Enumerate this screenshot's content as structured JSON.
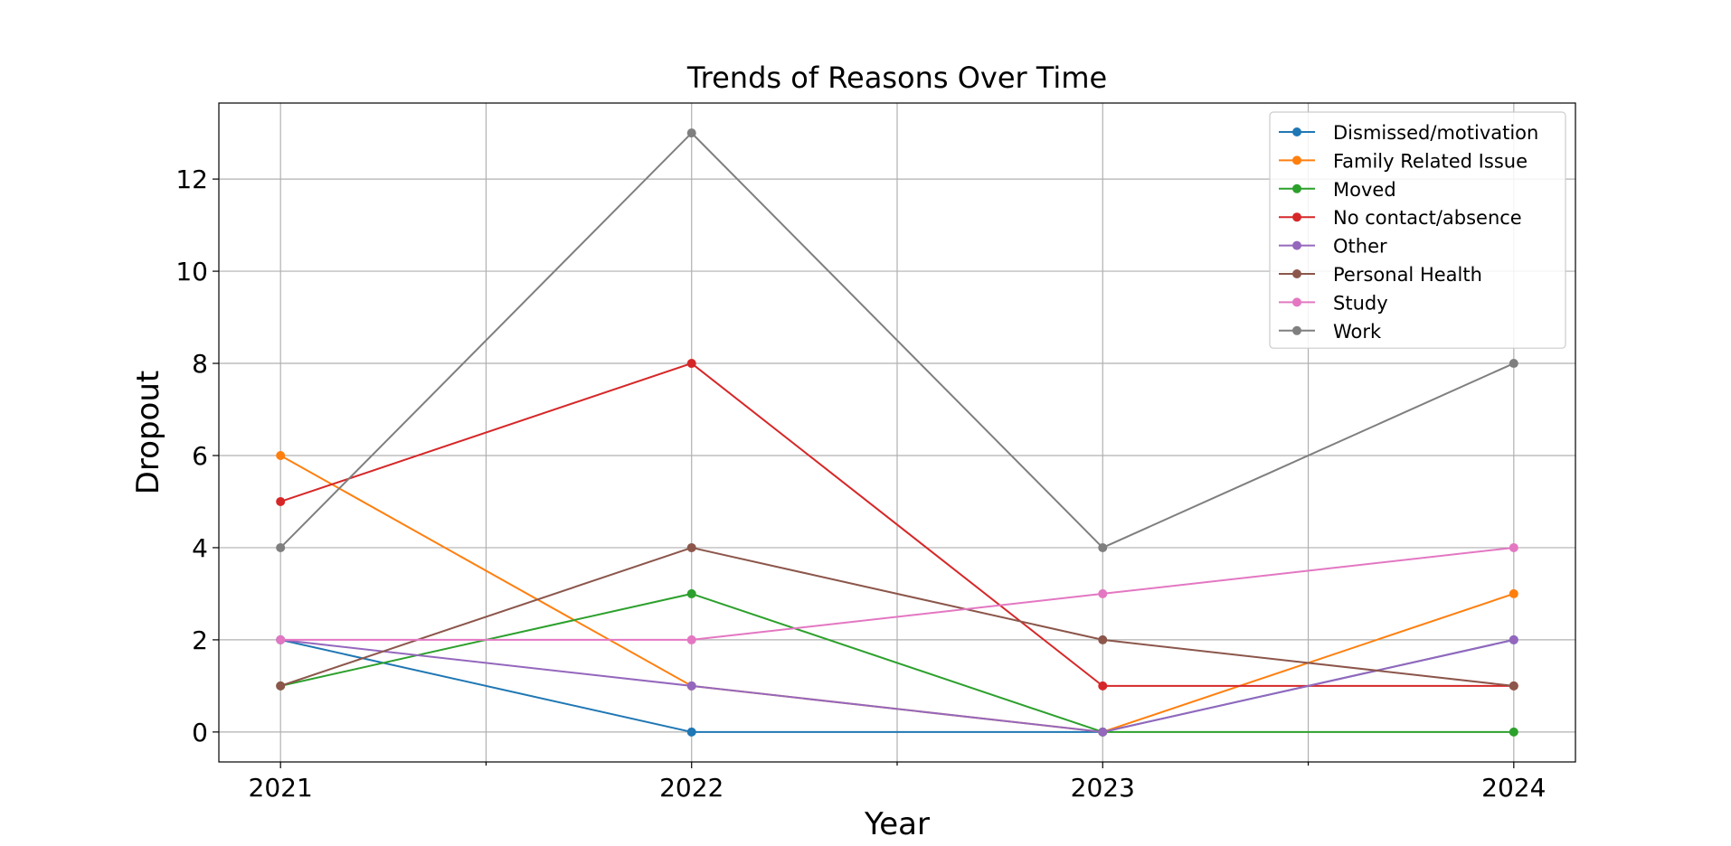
{
  "chart_data": {
    "type": "line",
    "title": "Trends of Reasons Over Time",
    "xlabel": "Year",
    "ylabel": "Dropout",
    "x": [
      2021,
      2022,
      2023,
      2024
    ],
    "x_tick_labels": [
      "2021",
      "2022",
      "2023",
      "2024"
    ],
    "y_ticks": [
      0,
      2,
      4,
      6,
      8,
      10,
      12
    ],
    "y_tick_labels": [
      "0",
      "2",
      "4",
      "6",
      "8",
      "10",
      "12"
    ],
    "xlim": [
      2020.85,
      2024.15
    ],
    "ylim": [
      -0.65,
      13.65
    ],
    "grid": true,
    "legend_position": "top-right",
    "series": [
      {
        "name": "Dismissed/motivation",
        "color": "#1f77b4",
        "values": [
          2,
          0,
          0,
          2
        ]
      },
      {
        "name": "Family Related Issue",
        "color": "#ff7f0e",
        "values": [
          6,
          1,
          0,
          3
        ]
      },
      {
        "name": "Moved",
        "color": "#2ca02c",
        "values": [
          1,
          3,
          0,
          0
        ]
      },
      {
        "name": "No contact/absence",
        "color": "#d62728",
        "values": [
          5,
          8,
          1,
          1
        ]
      },
      {
        "name": "Other",
        "color": "#9467bd",
        "values": [
          2,
          1,
          0,
          2
        ]
      },
      {
        "name": "Personal Health",
        "color": "#8c564b",
        "values": [
          1,
          4,
          2,
          1
        ]
      },
      {
        "name": "Study",
        "color": "#e377c2",
        "values": [
          2,
          2,
          3,
          4
        ]
      },
      {
        "name": "Work",
        "color": "#7f7f7f",
        "values": [
          4,
          13,
          4,
          8
        ]
      }
    ]
  }
}
